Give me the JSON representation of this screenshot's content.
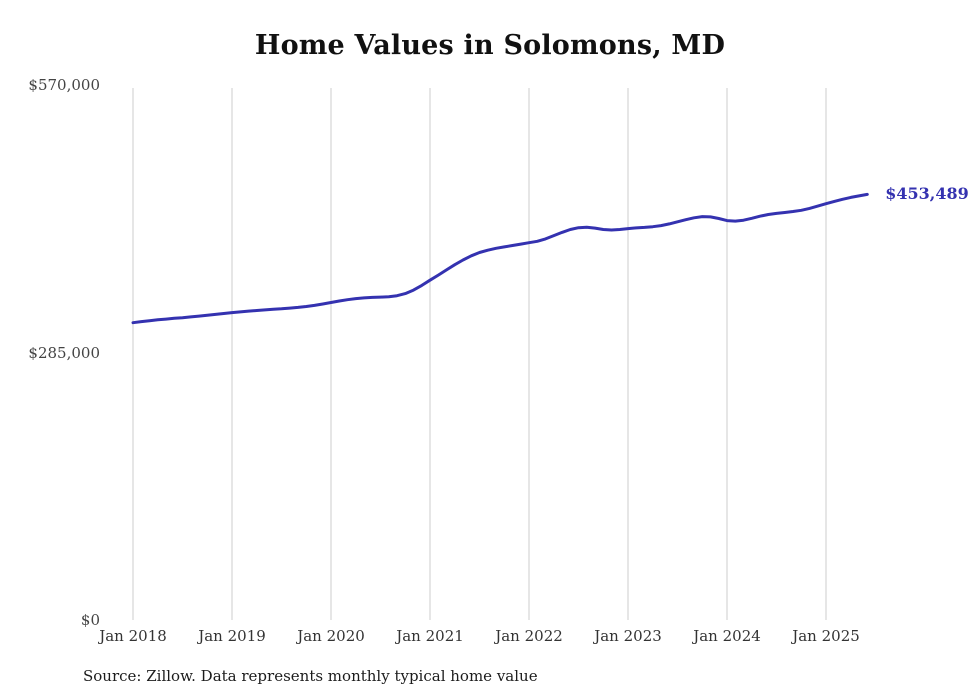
{
  "title": "Home Values in Solomons, MD",
  "source_note": "Source: Zillow. Data represents monthly typical home value",
  "end_label": "$453,489",
  "colors": {
    "line": "#3432b0",
    "grid": "#cccccc",
    "axis_text": "#444444",
    "title_text": "#111111"
  },
  "chart_data": {
    "type": "line",
    "title": "Home Values in Solomons, MD",
    "series_name": "Typical home value",
    "ylim": [
      0,
      570000
    ],
    "grid": "vertical-gridlines-at-january",
    "legend": "none",
    "end_annotation": "$453,489",
    "y_ticks": [
      {
        "label": "$0",
        "value": 0
      },
      {
        "label": "$285,000",
        "value": 285000
      },
      {
        "label": "$570,000",
        "value": 570000
      }
    ],
    "x_ticks": [
      {
        "label": "Jan 2018",
        "month_index": 0
      },
      {
        "label": "Jan 2019",
        "month_index": 12
      },
      {
        "label": "Jan 2020",
        "month_index": 24
      },
      {
        "label": "Jan 2021",
        "month_index": 36
      },
      {
        "label": "Jan 2022",
        "month_index": 48
      },
      {
        "label": "Jan 2023",
        "month_index": 60
      },
      {
        "label": "Jan 2024",
        "month_index": 72
      },
      {
        "label": "Jan 2025",
        "month_index": 84
      }
    ],
    "x_start": "2018-01",
    "x_freq": "monthly",
    "x": [
      "2018-01",
      "2018-02",
      "2018-03",
      "2018-04",
      "2018-05",
      "2018-06",
      "2018-07",
      "2018-08",
      "2018-09",
      "2018-10",
      "2018-11",
      "2018-12",
      "2019-01",
      "2019-02",
      "2019-03",
      "2019-04",
      "2019-05",
      "2019-06",
      "2019-07",
      "2019-08",
      "2019-09",
      "2019-10",
      "2019-11",
      "2019-12",
      "2020-01",
      "2020-02",
      "2020-03",
      "2020-04",
      "2020-05",
      "2020-06",
      "2020-07",
      "2020-08",
      "2020-09",
      "2020-10",
      "2020-11",
      "2020-12",
      "2021-01",
      "2021-02",
      "2021-03",
      "2021-04",
      "2021-05",
      "2021-06",
      "2021-07",
      "2021-08",
      "2021-09",
      "2021-10",
      "2021-11",
      "2021-12",
      "2022-01",
      "2022-02",
      "2022-03",
      "2022-04",
      "2022-05",
      "2022-06",
      "2022-07",
      "2022-08",
      "2022-09",
      "2022-10",
      "2022-11",
      "2022-12",
      "2023-01",
      "2023-02",
      "2023-03",
      "2023-04",
      "2023-05",
      "2023-06",
      "2023-07",
      "2023-08",
      "2023-09",
      "2023-10",
      "2023-11",
      "2023-12",
      "2024-01",
      "2024-02",
      "2024-03",
      "2024-04",
      "2024-05",
      "2024-06",
      "2024-07",
      "2024-08",
      "2024-09",
      "2024-10",
      "2024-11",
      "2024-12",
      "2025-01",
      "2025-02",
      "2025-03",
      "2025-04",
      "2025-05",
      "2025-06"
    ],
    "values": [
      316800,
      317900,
      318900,
      319800,
      320600,
      321400,
      322100,
      322900,
      323800,
      324700,
      325600,
      326600,
      327500,
      328300,
      329100,
      329800,
      330400,
      331000,
      331600,
      332300,
      333100,
      334000,
      335200,
      336700,
      338300,
      339900,
      341300,
      342400,
      343200,
      343700,
      344000,
      344400,
      345500,
      347800,
      351500,
      356500,
      362000,
      367500,
      373000,
      378500,
      383500,
      388000,
      391500,
      394000,
      396000,
      397500,
      399000,
      400500,
      402000,
      403500,
      406000,
      409500,
      413000,
      416000,
      418000,
      418500,
      417500,
      416000,
      415500,
      416000,
      417000,
      417800,
      418300,
      419000,
      420200,
      422000,
      424200,
      426500,
      428500,
      429800,
      429500,
      427800,
      425500,
      425000,
      426000,
      428000,
      430200,
      432000,
      433200,
      434200,
      435200,
      436500,
      438500,
      441000,
      443500,
      446000,
      448200,
      450200,
      451800,
      453489
    ]
  }
}
